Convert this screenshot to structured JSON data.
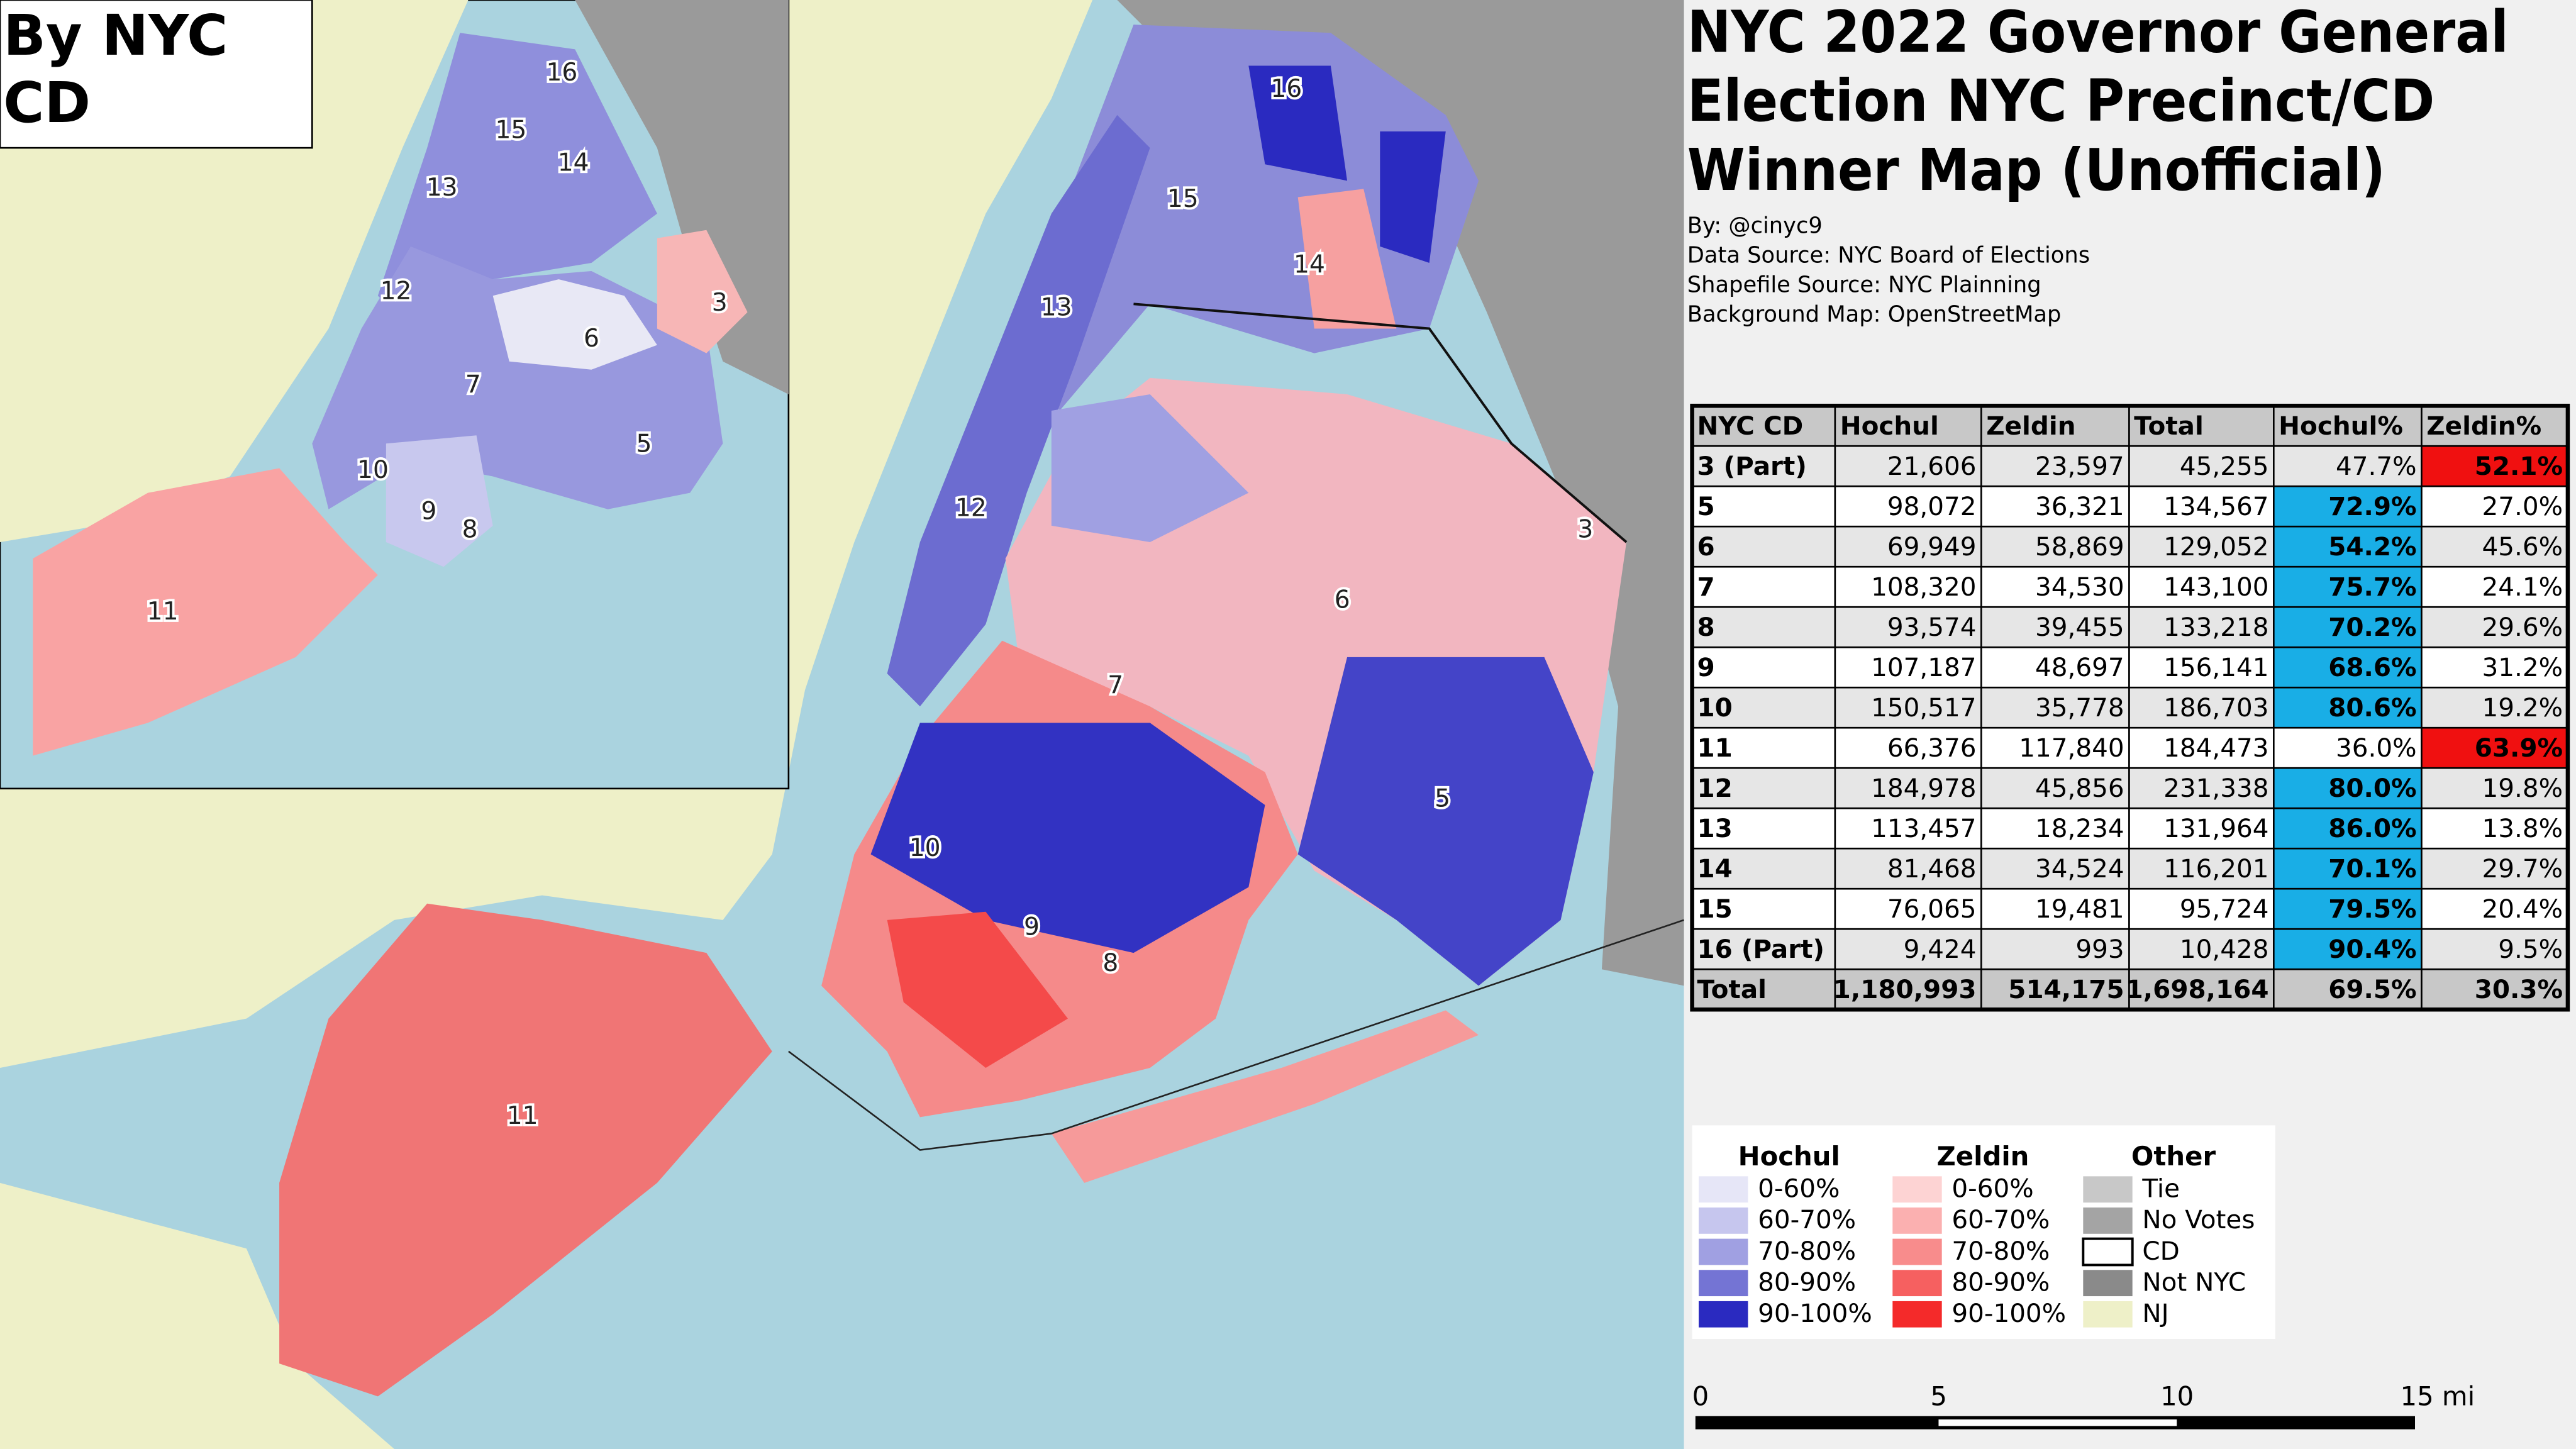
{
  "title": [
    "NYC 2022 Governor General",
    "Election NYC Precinct/CD",
    "Winner Map (Unofficial)"
  ],
  "credits": [
    "By: @cinyc9",
    "Data Source: NYC Board of Elections",
    "Shapefile Source: NYC Plainning",
    "Background Map: OpenStreetMap"
  ],
  "table": {
    "header": [
      "NYC CD",
      "Hochul",
      "Zeldin",
      "Total",
      "Hochul%",
      "Zeldin%"
    ],
    "rows": [
      [
        "3 (Part)",
        "21,606",
        "23,597",
        "45,255",
        "47.7%",
        "52.1%"
      ],
      [
        "5",
        "98,072",
        "36,321",
        "134,567",
        "72.9%",
        "27.0%"
      ],
      [
        "6",
        "69,949",
        "58,869",
        "129,052",
        "54.2%",
        "45.6%"
      ],
      [
        "7",
        "108,320",
        "34,530",
        "143,100",
        "75.7%",
        "24.1%"
      ],
      [
        "8",
        "93,574",
        "39,455",
        "133,218",
        "70.2%",
        "29.6%"
      ],
      [
        "9",
        "107,187",
        "48,697",
        "156,141",
        "68.6%",
        "31.2%"
      ],
      [
        "10",
        "150,517",
        "35,778",
        "186,703",
        "80.6%",
        "19.2%"
      ],
      [
        "11",
        "66,376",
        "117,840",
        "184,473",
        "36.0%",
        "63.9%"
      ],
      [
        "12",
        "184,978",
        "45,856",
        "231,338",
        "80.0%",
        "19.8%"
      ],
      [
        "13",
        "113,457",
        "18,234",
        "131,964",
        "86.0%",
        "13.8%"
      ],
      [
        "14",
        "81,468",
        "34,524",
        "116,201",
        "70.1%",
        "29.7%"
      ],
      [
        "15",
        "76,065",
        "19,481",
        "95,724",
        "79.5%",
        "20.4%"
      ],
      [
        "16 (Part)",
        "9,424",
        "993",
        "10,428",
        "90.4%",
        "9.5%"
      ],
      [
        "Total",
        "1,180,993",
        "514,175",
        "1,698,164",
        "69.5%",
        "30.3%"
      ]
    ]
  },
  "legend": [
    {
      "title": "Hochul",
      "items": [
        {
          "label": "0-60%",
          "color": "#e6e6f7"
        },
        {
          "label": "60-70%",
          "color": "#c6c6ee"
        },
        {
          "label": "70-80%",
          "color": "#a0a0e2"
        },
        {
          "label": "80-90%",
          "color": "#7474d4"
        },
        {
          "label": "90-100%",
          "color": "#2a2ac0"
        }
      ]
    },
    {
      "title": "Zeldin",
      "items": [
        {
          "label": "0-60%",
          "color": "#fdd3d3"
        },
        {
          "label": "60-70%",
          "color": "#fbb0b0"
        },
        {
          "label": "70-80%",
          "color": "#f88c8c"
        },
        {
          "label": "80-90%",
          "color": "#f66060"
        },
        {
          "label": "90-100%",
          "color": "#f42a2a"
        }
      ]
    },
    {
      "title": "Other",
      "items": [
        {
          "label": "Tie",
          "color": "#c8c8c8"
        },
        {
          "label": "No Votes",
          "color": "#a4a4a4"
        },
        {
          "label": "CD",
          "color": "#ffffff"
        },
        {
          "label": "Not NYC",
          "color": "#8a8a8a"
        },
        {
          "label": "NJ",
          "color": "#eef0c8"
        }
      ]
    }
  ],
  "scale_labels": [
    "0",
    "5",
    "10",
    "15 mi"
  ],
  "main_map": {
    "district_labels": [
      "16",
      "15",
      "14",
      "13",
      "12",
      "3",
      "6",
      "7",
      "5",
      "10",
      "9",
      "8",
      "11"
    ]
  },
  "inset_map": {
    "title": [
      "By NYC",
      "CD"
    ],
    "district_labels": [
      "16",
      "15",
      "14",
      "13",
      "12",
      "3",
      "6",
      "7",
      "5",
      "10",
      "9",
      "8",
      "11"
    ]
  }
}
